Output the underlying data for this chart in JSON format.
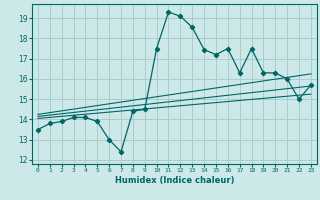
{
  "xlabel": "Humidex (Indice chaleur)",
  "background_color": "#cce8e8",
  "grid_color": "#aacccc",
  "line_color": "#006666",
  "xlim": [
    -0.5,
    23.5
  ],
  "ylim": [
    11.8,
    19.7
  ],
  "xticks": [
    0,
    1,
    2,
    3,
    4,
    5,
    6,
    7,
    8,
    9,
    10,
    11,
    12,
    13,
    14,
    15,
    16,
    17,
    18,
    19,
    20,
    21,
    22,
    23
  ],
  "yticks": [
    12,
    13,
    14,
    15,
    16,
    17,
    18,
    19
  ],
  "main_x": [
    0,
    1,
    2,
    3,
    4,
    5,
    6,
    7,
    8,
    9,
    10,
    11,
    12,
    13,
    14,
    15,
    16,
    17,
    18,
    19,
    20,
    21,
    22,
    23
  ],
  "main_y": [
    13.5,
    13.8,
    13.9,
    14.1,
    14.1,
    13.9,
    13.0,
    12.4,
    14.4,
    14.5,
    17.5,
    19.3,
    19.1,
    18.55,
    17.45,
    17.2,
    17.5,
    16.3,
    17.5,
    16.3,
    16.3,
    16.0,
    15.0,
    15.7
  ],
  "trend1_x": [
    0,
    23
  ],
  "trend1_y": [
    14.05,
    15.25
  ],
  "trend2_x": [
    0,
    23
  ],
  "trend2_y": [
    14.15,
    15.65
  ],
  "trend3_x": [
    0,
    23
  ],
  "trend3_y": [
    14.25,
    16.25
  ]
}
